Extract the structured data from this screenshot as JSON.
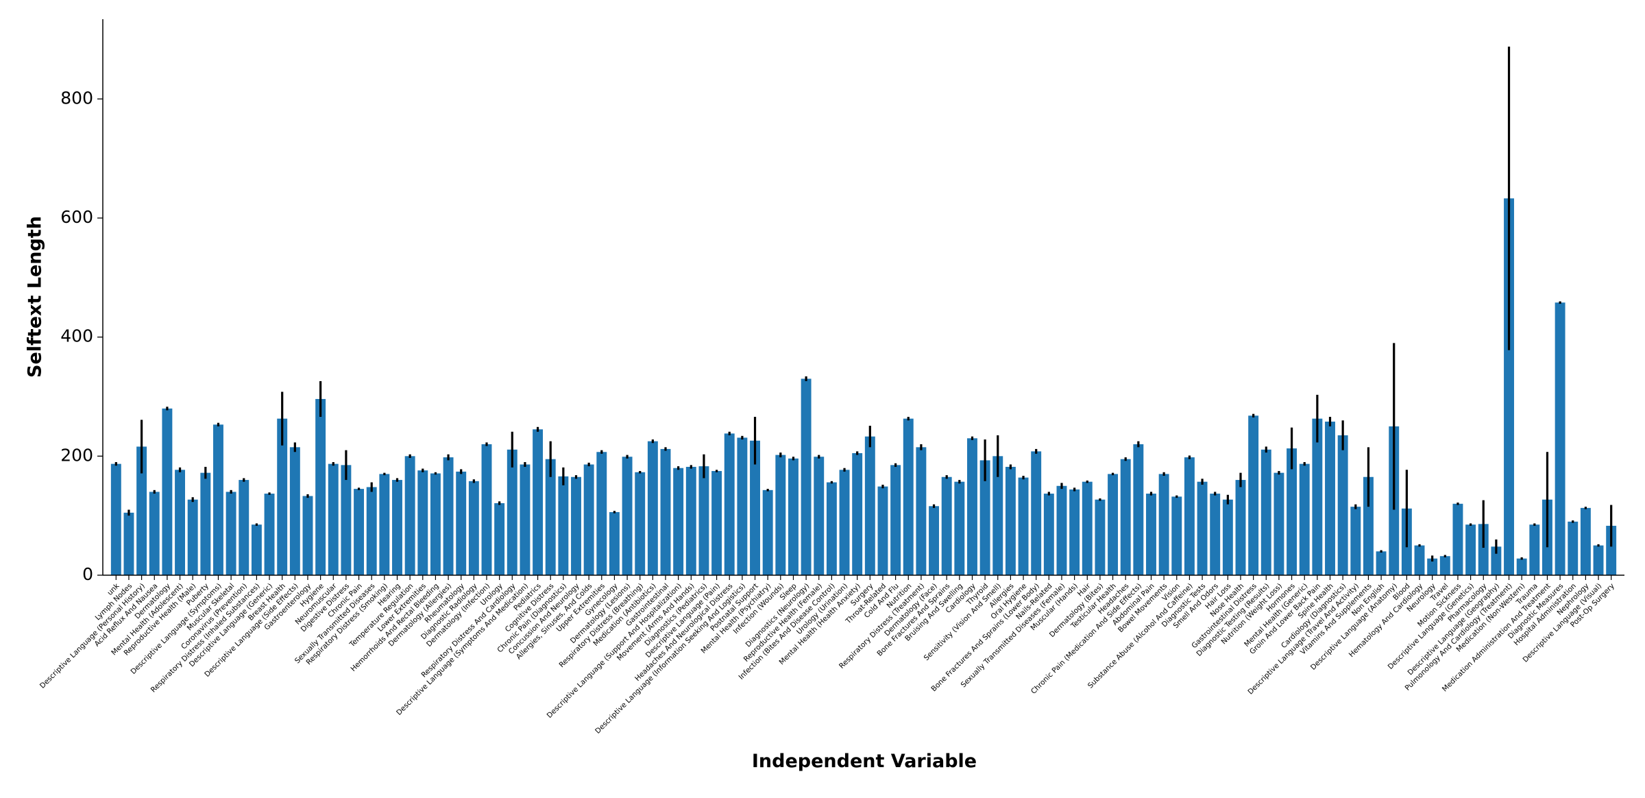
{
  "chart_data": {
    "type": "bar",
    "xlabel": "Independent Variable",
    "ylabel": "Selftext Length",
    "color": "#1f77b4",
    "error_color": "#000000",
    "categories": [
      "unk",
      "Lymph Nodes",
      "Descriptive Language (Personal History)",
      "Acid Reflux And Nausea",
      "Dermatology",
      "Mental Health (Adolescent)",
      "Reproductive Health (Male)",
      "Puberty",
      "Descriptive Language (Symptoms)",
      "Muscular Skeletal",
      "Coronavirus (Prevention)",
      "Respiratory Distress (Inhaled Substances)",
      "Descriptive Language (Generic)",
      "Breast Health",
      "Descriptive Language (Side Effects)",
      "Gastroenterology",
      "Hygiene",
      "Neuromuscular",
      "Digestive Distress",
      "Chronic Pain",
      "Sexually Transmitted Diseases",
      "Respiratory Distress (Smoking)",
      "Hearing",
      "Temperature Regulation",
      "Lower Extremities",
      "Hemorrhoids And Rectal Bleeding",
      "Dermatology (Allergies)",
      "Rheumatology",
      "Diagnostic Radiology",
      "Dermatology (Infection)",
      "Urology",
      "Respiratory Distress And Cardiology",
      "Descriptive Language (Symptoms And Medication)",
      "Pediatrics",
      "Cognitive Distress",
      "Chronic Pain (Diagnostics)",
      "Concussion And Neurology",
      "Allergies, Sinuses, And Colds",
      "Upper Extremities",
      "Gynecology",
      "Dermatology (Lesions)",
      "Respiratory Distress (Breathing)",
      "Medication (Antibiotics)",
      "Gastrointestinal",
      "Descriptive Language (Support And Hospitalization)",
      "Movement (Arms And Hands)",
      "Diagnostics (Pediatrics)",
      "Descriptive Language (Pain)",
      "Headaches And Neurological Distress",
      "Descriptive Language (Information Seeking And Logistics)",
      "Postnatal Support",
      "Mental Health (Psychiatry)",
      "Infection (Wounds)",
      "Sleep",
      "Diagnostics (Neurology)",
      "Reproductive Health (Female)",
      "Infection (Bites And Disease Control)",
      "Urology (Urination)",
      "Mental Health (Health Anxiety)",
      "Surgery",
      "Throat-Related",
      "Cold And Flu",
      "Nutrition",
      "Respiratory Distress (Treatment)",
      "Dermatology (Face)",
      "Bone Fractures And Sprains",
      "Bruising And Swelling",
      "Cardiology",
      "Thyroid",
      "Sensitivity (Vision And Smell)",
      "Allergies",
      "Oral Hygiene",
      "Bone Fractures And Sprains (Lower Body)",
      "Nails-Related",
      "Sexually Transmitted Diseases (Female)",
      "Muscular (Hands)",
      "Hair",
      "Dermatology (Bites)",
      "Testicular Health",
      "Headaches",
      "Chronic Pain (Medication And Side Effects)",
      "Abdominal Pain",
      "Bowel Movements",
      "Vision",
      "Substance Abuse (Alcohol And Caffeine)",
      "Diagnostic Tests",
      "Smell And Odors",
      "Hair Loss",
      "Nose Health",
      "Gastrointestinal Distress",
      "Diagnostic Testing (Results)",
      "Nutrition (Weight Loss)",
      "Hormones",
      "Mental Health (Generic)",
      "Groin And Lower Back Pain",
      "Spine Health",
      "Cardiology (Diagnostics)",
      "Descriptive Language (Travel And Activity)",
      "Vitamins And Supplements",
      "Non English",
      "Descriptive Language (Anatomy)",
      "Blood",
      "Hematology And Cardiology",
      "Neurology",
      "Travel",
      "Motion Sickness",
      "Descriptive Language (Genetics)",
      "Pharmacology",
      "Descriptive Language (Geography)",
      "Pulmonology And Cardiology (Treatment)",
      "Medication (Non-Western)",
      "Trauma",
      "Medication Administration And Treatment",
      "Diagnostic Measures",
      "Hospital Administration",
      "Nephrology",
      "Descriptive Language (Visual)",
      "Post-Op Surgery"
    ],
    "values": [
      187,
      105,
      216,
      140,
      280,
      177,
      127,
      172,
      253,
      140,
      160,
      85,
      137,
      263,
      215,
      133,
      296,
      187,
      185,
      145,
      148,
      170,
      160,
      200,
      176,
      171,
      198,
      174,
      158,
      220,
      121,
      211,
      186,
      245,
      195,
      166,
      165,
      186,
      207,
      106,
      199,
      173,
      225,
      212,
      180,
      182,
      183,
      175,
      238,
      231,
      226,
      143,
      202,
      196,
      330,
      199,
      156,
      177,
      205,
      233,
      149,
      185,
      263,
      215,
      116,
      165,
      157,
      230,
      193,
      200,
      182,
      164,
      208,
      137,
      150,
      144,
      157,
      127,
      170,
      195,
      220,
      137,
      170,
      132,
      198,
      157,
      137,
      127,
      160,
      268,
      211,
      172,
      213,
      187,
      263,
      258,
      235,
      115,
      165,
      40,
      250,
      112,
      50,
      28,
      32,
      120,
      85,
      86,
      48,
      633,
      28,
      85,
      127,
      458,
      90,
      113,
      50,
      83
    ],
    "errors": [
      3,
      5,
      45,
      3,
      3,
      4,
      4,
      10,
      3,
      3,
      3,
      2,
      2,
      45,
      8,
      3,
      30,
      3,
      25,
      2,
      8,
      2,
      3,
      3,
      3,
      2,
      5,
      4,
      3,
      3,
      3,
      30,
      4,
      4,
      30,
      15,
      3,
      3,
      3,
      2,
      3,
      2,
      3,
      3,
      3,
      3,
      20,
      2,
      3,
      3,
      40,
      2,
      4,
      3,
      4,
      3,
      2,
      3,
      3,
      18,
      3,
      3,
      3,
      5,
      3,
      3,
      3,
      3,
      35,
      35,
      4,
      3,
      4,
      3,
      5,
      3,
      2,
      2,
      2,
      3,
      5,
      3,
      3,
      2,
      3,
      5,
      3,
      8,
      12,
      3,
      5,
      3,
      35,
      3,
      40,
      8,
      25,
      4,
      50,
      2,
      140,
      65,
      2,
      5,
      2,
      2,
      2,
      40,
      12,
      255,
      2,
      2,
      80,
      2,
      2,
      2,
      2,
      35
    ],
    "ylim": [
      0,
      934
    ],
    "yticks": [
      0,
      200,
      400,
      600,
      800
    ]
  }
}
